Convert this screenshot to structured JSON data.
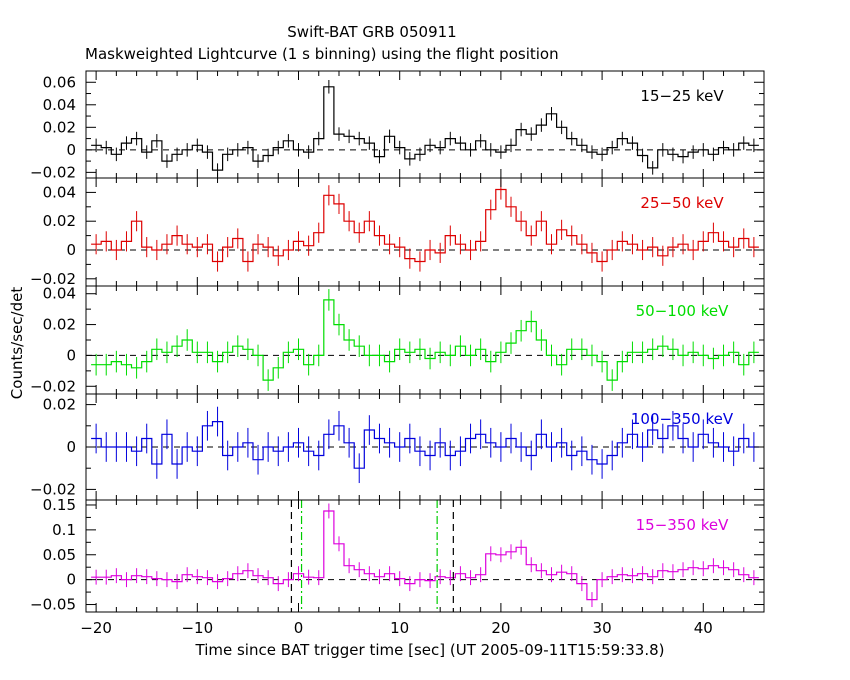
{
  "header": {
    "title": "Swift-BAT GRB 050911",
    "subtitle": "Maskweighted Lightcurve (1 s binning) using the flight position"
  },
  "axes": {
    "xlabel": "Time since BAT trigger time [sec] (UT 2005-09-11T15:59:33.8)",
    "ylabel": "Counts/sec/det",
    "xlim": [
      -21,
      46
    ],
    "xticks": [
      -20,
      -10,
      0,
      10,
      20,
      30,
      40
    ],
    "xticklabels": [
      "−20",
      "−10",
      "0",
      "10",
      "20",
      "30",
      "40"
    ]
  },
  "colors": {
    "frame": "#000000",
    "zero_line": "#000000",
    "vline_black": "#000000",
    "vline_green": "#00cc00"
  },
  "chart_data": {
    "type": "line",
    "style": "step histogram with error bars, stacked panels sharing x axis",
    "x": [
      -20,
      -19,
      -18,
      -17,
      -16,
      -15,
      -14,
      -13,
      -12,
      -11,
      -10,
      -9,
      -8,
      -7,
      -6,
      -5,
      -4,
      -3,
      -2,
      -1,
      0,
      1,
      2,
      3,
      4,
      5,
      6,
      7,
      8,
      9,
      10,
      11,
      12,
      13,
      14,
      15,
      16,
      17,
      18,
      19,
      20,
      21,
      22,
      23,
      24,
      25,
      26,
      27,
      28,
      29,
      30,
      31,
      32,
      33,
      34,
      35,
      36,
      37,
      38,
      39,
      40,
      41,
      42,
      43,
      44,
      45
    ],
    "panels": [
      {
        "label": "15−25 keV",
        "color": "#000000",
        "ylim": [
          -0.025,
          0.07
        ],
        "yticks": [
          -0.02,
          0,
          0.02,
          0.04,
          0.06
        ],
        "yticklabels": [
          "−0.02",
          "0",
          "0.02",
          "0.04",
          "0.06"
        ],
        "err": 0.006,
        "values": [
          0.004,
          0.002,
          -0.004,
          0.006,
          0.01,
          -0.002,
          0.008,
          -0.01,
          -0.004,
          0.0,
          0.004,
          -0.002,
          -0.018,
          -0.004,
          0.0,
          0.002,
          -0.01,
          -0.005,
          0.002,
          0.008,
          0.0,
          -0.002,
          0.01,
          0.056,
          0.014,
          0.012,
          0.01,
          0.006,
          -0.006,
          0.012,
          0.002,
          -0.008,
          -0.004,
          0.004,
          0.002,
          0.01,
          0.006,
          0.0,
          0.008,
          0.0,
          -0.002,
          0.004,
          0.018,
          0.014,
          0.022,
          0.032,
          0.02,
          0.01,
          0.004,
          -0.002,
          -0.004,
          0.002,
          0.01,
          0.006,
          -0.005,
          -0.016,
          0.0,
          -0.004,
          -0.006,
          -0.002,
          0.0,
          -0.004,
          0.002,
          0.0,
          0.006,
          0.004
        ]
      },
      {
        "label": "25−50 keV",
        "color": "#dd0000",
        "ylim": [
          -0.025,
          0.05
        ],
        "yticks": [
          -0.02,
          0,
          0.02,
          0.04
        ],
        "yticklabels": [
          "−0.02",
          "0",
          "0.02",
          "0.04"
        ],
        "err": 0.007,
        "values": [
          0.004,
          0.006,
          0.0,
          0.006,
          0.02,
          0.002,
          0.0,
          0.004,
          0.01,
          0.004,
          0.002,
          0.004,
          -0.008,
          0.002,
          0.008,
          -0.008,
          0.004,
          0.002,
          -0.004,
          0.0,
          0.006,
          0.003,
          0.012,
          0.038,
          0.032,
          0.02,
          0.012,
          0.02,
          0.01,
          0.004,
          0.002,
          -0.006,
          -0.008,
          0.0,
          -0.002,
          0.01,
          0.004,
          0.0,
          0.006,
          0.028,
          0.042,
          0.03,
          0.02,
          0.01,
          0.02,
          0.004,
          0.014,
          0.01,
          0.004,
          -0.002,
          -0.008,
          0.0,
          0.006,
          0.004,
          0.0,
          0.002,
          -0.004,
          0.002,
          0.004,
          0.0,
          0.006,
          0.012,
          0.006,
          0.002,
          0.008,
          0.002
        ]
      },
      {
        "label": "50−100 keV",
        "color": "#00dd00",
        "ylim": [
          -0.025,
          0.045
        ],
        "yticks": [
          -0.02,
          0,
          0.02,
          0.04
        ],
        "yticklabels": [
          "−0.02",
          "0",
          "0.02",
          "0.04"
        ],
        "err": 0.007,
        "values": [
          -0.006,
          -0.006,
          -0.004,
          -0.006,
          -0.008,
          -0.004,
          0.004,
          0.002,
          0.006,
          0.01,
          0.002,
          0.002,
          -0.004,
          0.002,
          0.006,
          0.004,
          0.0,
          -0.016,
          -0.008,
          0.002,
          0.004,
          -0.006,
          0.0,
          0.036,
          0.02,
          0.01,
          0.006,
          0.0,
          0.0,
          -0.004,
          0.004,
          0.002,
          0.004,
          -0.002,
          0.002,
          0.0,
          0.006,
          0.0,
          0.004,
          -0.004,
          0.002,
          0.008,
          0.016,
          0.022,
          0.01,
          0.0,
          -0.006,
          0.004,
          0.004,
          0.0,
          -0.004,
          -0.016,
          -0.004,
          0.002,
          0.002,
          0.004,
          0.006,
          0.004,
          0.0,
          0.002,
          0.0,
          -0.002,
          0.0,
          0.002,
          -0.006,
          0.002
        ]
      },
      {
        "label": "100−350 keV",
        "color": "#0000dd",
        "ylim": [
          -0.025,
          0.025
        ],
        "yticks": [
          -0.02,
          0,
          0.02
        ],
        "yticklabels": [
          "−0.02",
          "0",
          "0.02"
        ],
        "err": 0.007,
        "values": [
          0.004,
          0.0,
          0.0,
          0.0,
          -0.002,
          0.004,
          -0.008,
          0.006,
          -0.008,
          0.0,
          -0.002,
          0.01,
          0.012,
          -0.004,
          0.0,
          0.002,
          -0.006,
          0.0,
          -0.002,
          0.0,
          0.002,
          -0.002,
          -0.004,
          0.006,
          0.01,
          0.002,
          -0.01,
          0.008,
          0.004,
          0.002,
          0.0,
          0.004,
          -0.002,
          -0.004,
          0.002,
          -0.004,
          -0.002,
          0.004,
          0.006,
          0.002,
          0.0,
          0.004,
          0.0,
          -0.004,
          0.006,
          0.0,
          0.002,
          -0.004,
          -0.002,
          -0.006,
          -0.008,
          -0.004,
          0.002,
          0.006,
          0.0,
          0.008,
          0.004,
          0.01,
          0.004,
          0.0,
          0.006,
          0.002,
          0.0,
          -0.002,
          0.004,
          0.0
        ]
      },
      {
        "label": "15−350 keV",
        "color": "#dd00dd",
        "ylim": [
          -0.065,
          0.16
        ],
        "yticks": [
          -0.05,
          0,
          0.05,
          0.1,
          0.15
        ],
        "yticklabels": [
          "−0.05",
          "0",
          "0.05",
          "0.1",
          "0.15"
        ],
        "err": 0.015,
        "values": [
          0.005,
          0.005,
          0.008,
          0.0,
          0.008,
          0.006,
          0.002,
          0.0,
          -0.004,
          0.01,
          0.006,
          0.004,
          -0.004,
          0.002,
          0.012,
          0.018,
          0.008,
          0.004,
          -0.008,
          0.0,
          0.012,
          0.005,
          0.004,
          0.138,
          0.072,
          0.028,
          0.02,
          0.012,
          0.006,
          0.012,
          0.002,
          -0.008,
          0.0,
          -0.002,
          0.006,
          0.004,
          0.012,
          0.004,
          0.01,
          0.052,
          0.05,
          0.056,
          0.065,
          0.03,
          0.018,
          0.01,
          0.015,
          0.012,
          -0.008,
          -0.04,
          0.0,
          0.006,
          0.01,
          0.008,
          0.012,
          0.006,
          0.018,
          0.016,
          0.02,
          0.024,
          0.022,
          0.028,
          0.024,
          0.02,
          0.01,
          0.004
        ]
      }
    ],
    "vertical_lines_last_panel": [
      {
        "x": -0.7,
        "color": "#000000",
        "dash": "dashed"
      },
      {
        "x": 0.3,
        "color": "#00cc00",
        "dash": "dash-dot"
      },
      {
        "x": 13.7,
        "color": "#00cc00",
        "dash": "dash-dot"
      },
      {
        "x": 15.3,
        "color": "#000000",
        "dash": "dashed"
      }
    ],
    "grid": false
  }
}
